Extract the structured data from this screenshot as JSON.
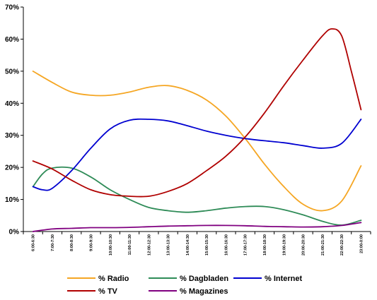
{
  "chart_data": {
    "type": "line",
    "title": "",
    "xlabel": "",
    "ylabel": "",
    "ylim": [
      0,
      70
    ],
    "y_ticks": [
      "0%",
      "10%",
      "20%",
      "30%",
      "40%",
      "50%",
      "60%",
      "70%"
    ],
    "categories": [
      "6:00-6:30",
      "7:00-7:30",
      "8:00-8:30",
      "9:00-9:30",
      "10:00-10:30",
      "11:00-11:30",
      "12:00-12:30",
      "13:00-13:30",
      "14:00-14:30",
      "15:00-15:30",
      "16:00-16:30",
      "17:00-17:30",
      "18:00-18:30",
      "19:00-19:30",
      "20:00-20:30",
      "21:00-21:30",
      "22:00-22:30",
      "23:00-0:00"
    ],
    "grid": false,
    "legend_position": "bottom",
    "series": [
      {
        "name": "% Radio",
        "color": "#f5a623",
        "x": [
          0,
          1,
          2,
          3,
          4,
          5,
          6,
          7,
          8,
          9,
          10,
          11,
          12,
          13,
          14,
          15,
          16,
          17
        ],
        "values": [
          50,
          46.5,
          43.5,
          42.5,
          42.5,
          43.5,
          45,
          45.5,
          44,
          41,
          36,
          29,
          21,
          14,
          8.5,
          6.5,
          9.5,
          20.5
        ]
      },
      {
        "name": "% Dagbladen",
        "color": "#2e8b57",
        "x": [
          0,
          0.5,
          1,
          2,
          3,
          4,
          5,
          6,
          7,
          8,
          9,
          10,
          11,
          12,
          13,
          14,
          15,
          16,
          17
        ],
        "values": [
          14,
          18,
          19.8,
          19.8,
          17,
          13,
          10,
          7.5,
          6.5,
          6,
          6.5,
          7.3,
          7.8,
          7.8,
          6.8,
          5.2,
          3.2,
          2,
          3.5
        ]
      },
      {
        "name": "% Internet",
        "color": "#0000d0",
        "x": [
          0,
          0.5,
          1,
          2,
          3,
          4,
          5,
          6,
          7,
          8,
          9,
          10,
          11,
          12,
          13,
          14,
          15,
          16,
          17
        ],
        "values": [
          14,
          13,
          13.5,
          19,
          26,
          32,
          34.7,
          35,
          34.5,
          33,
          31.3,
          30,
          29,
          28.3,
          27.7,
          26.8,
          26,
          27.5,
          35
        ]
      },
      {
        "name": "% TV",
        "color": "#b00000",
        "x": [
          0,
          1,
          2,
          3,
          4,
          5,
          6,
          7,
          8,
          9,
          10,
          11,
          12,
          13,
          14,
          15,
          15.5,
          16,
          16.5,
          17
        ],
        "values": [
          22,
          19.5,
          16,
          13,
          11.5,
          11,
          11,
          12.5,
          15,
          19,
          23.5,
          29.5,
          37,
          45.5,
          53.5,
          61,
          63.2,
          61,
          50,
          38
        ]
      },
      {
        "name": "% Magazines",
        "color": "#800080",
        "x": [
          0,
          1,
          2,
          3,
          4,
          5,
          6,
          7,
          8,
          9,
          10,
          11,
          12,
          13,
          14,
          15,
          16,
          17
        ],
        "values": [
          0,
          0.8,
          1,
          1.2,
          1.2,
          1.3,
          1.5,
          1.7,
          1.8,
          1.9,
          1.9,
          1.8,
          1.6,
          1.5,
          1.4,
          1.5,
          1.9,
          2.8
        ]
      }
    ]
  }
}
